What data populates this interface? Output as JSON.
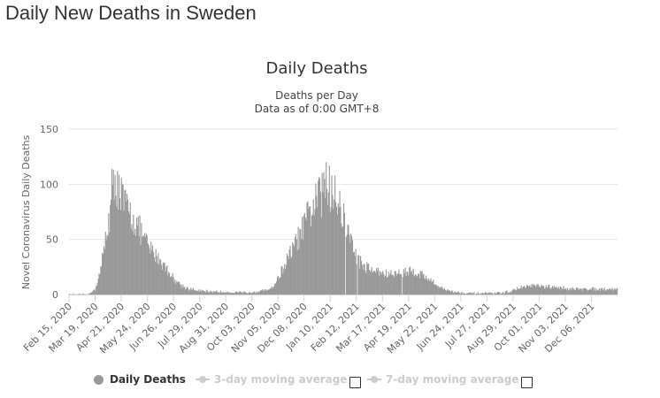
{
  "page": {
    "heading": "Daily New Deaths in Sweden"
  },
  "chart_data": {
    "type": "bar",
    "title": "Daily Deaths",
    "subtitle_lines": [
      "Deaths per Day",
      "Data as of 0:00 GMT+8"
    ],
    "ylabel": "Novel Coronavirus Daily Deaths",
    "ylim": [
      0,
      150
    ],
    "yticks": [
      0,
      50,
      100,
      150
    ],
    "grid": true,
    "legend_position": "bottom",
    "x_start": "2020-02-15",
    "x_end": "2021-12-31",
    "xtick_labels": [
      "Feb 15, 2020",
      "Mar 19, 2020",
      "Apr 21, 2020",
      "May 24, 2020",
      "Jun 26, 2020",
      "Jul 29, 2020",
      "Aug 31, 2020",
      "Oct 03, 2020",
      "Nov 05, 2020",
      "Dec 08, 2020",
      "Jan 10, 2021",
      "Feb 12, 2021",
      "Mar 17, 2021",
      "Apr 19, 2021",
      "May 22, 2021",
      "Jun 24, 2021",
      "Jul 27, 2021",
      "Aug 29, 2021",
      "Oct 01, 2021",
      "Nov 03, 2021",
      "Dec 06, 2021"
    ],
    "bar_color": "#999999",
    "trend_points": [
      [
        "2020-02-15",
        0
      ],
      [
        "2020-03-10",
        0
      ],
      [
        "2020-03-18",
        5
      ],
      [
        "2020-03-25",
        22
      ],
      [
        "2020-04-01",
        55
      ],
      [
        "2020-04-08",
        85
      ],
      [
        "2020-04-12",
        96
      ],
      [
        "2020-04-15",
        100
      ],
      [
        "2020-04-22",
        85
      ],
      [
        "2020-04-29",
        75
      ],
      [
        "2020-05-06",
        68
      ],
      [
        "2020-05-13",
        58
      ],
      [
        "2020-05-20",
        48
      ],
      [
        "2020-05-27",
        40
      ],
      [
        "2020-06-03",
        35
      ],
      [
        "2020-06-10",
        29
      ],
      [
        "2020-06-17",
        22
      ],
      [
        "2020-06-24",
        15
      ],
      [
        "2020-07-01",
        10
      ],
      [
        "2020-07-10",
        6
      ],
      [
        "2020-07-20",
        4
      ],
      [
        "2020-08-01",
        3
      ],
      [
        "2020-09-01",
        2
      ],
      [
        "2020-10-01",
        2
      ],
      [
        "2020-10-20",
        4
      ],
      [
        "2020-10-28",
        8
      ],
      [
        "2020-11-04",
        18
      ],
      [
        "2020-11-11",
        28
      ],
      [
        "2020-11-18",
        38
      ],
      [
        "2020-11-25",
        48
      ],
      [
        "2020-12-02",
        58
      ],
      [
        "2020-12-09",
        70
      ],
      [
        "2020-12-16",
        80
      ],
      [
        "2020-12-23",
        88
      ],
      [
        "2020-12-30",
        93
      ],
      [
        "2021-01-06",
        92
      ],
      [
        "2021-01-13",
        88
      ],
      [
        "2021-01-20",
        75
      ],
      [
        "2021-01-27",
        60
      ],
      [
        "2021-02-03",
        45
      ],
      [
        "2021-02-10",
        32
      ],
      [
        "2021-02-17",
        26
      ],
      [
        "2021-02-28",
        22
      ],
      [
        "2021-03-10",
        20
      ],
      [
        "2021-03-20",
        18
      ],
      [
        "2021-03-30",
        19
      ],
      [
        "2021-04-10",
        21
      ],
      [
        "2021-04-20",
        21
      ],
      [
        "2021-05-01",
        18
      ],
      [
        "2021-05-10",
        14
      ],
      [
        "2021-05-20",
        8
      ],
      [
        "2021-06-01",
        4
      ],
      [
        "2021-06-15",
        2
      ],
      [
        "2021-07-01",
        1
      ],
      [
        "2021-08-01",
        1
      ],
      [
        "2021-08-20",
        3
      ],
      [
        "2021-09-01",
        6
      ],
      [
        "2021-09-15",
        8
      ],
      [
        "2021-10-01",
        7
      ],
      [
        "2021-10-20",
        6
      ],
      [
        "2021-11-10",
        5
      ],
      [
        "2021-12-01",
        5
      ],
      [
        "2021-12-31",
        5
      ]
    ],
    "highlighted_peaks": [
      [
        "2020-04-08",
        114
      ],
      [
        "2020-04-10",
        113
      ],
      [
        "2020-04-15",
        112
      ],
      [
        "2020-04-21",
        100
      ],
      [
        "2020-12-22",
        103
      ],
      [
        "2020-12-29",
        111
      ],
      [
        "2021-01-01",
        120
      ],
      [
        "2021-01-05",
        117
      ],
      [
        "2021-01-08",
        108
      ],
      [
        "2021-01-12",
        108
      ]
    ],
    "gap_dates": [
      "2021-01-25",
      "2021-02-09",
      "2021-04-06"
    ]
  },
  "legend": {
    "items": [
      {
        "label": "Daily Deaths",
        "active": true
      },
      {
        "label": "3-day moving average",
        "active": false
      },
      {
        "label": "7-day moving average",
        "active": false
      }
    ]
  }
}
